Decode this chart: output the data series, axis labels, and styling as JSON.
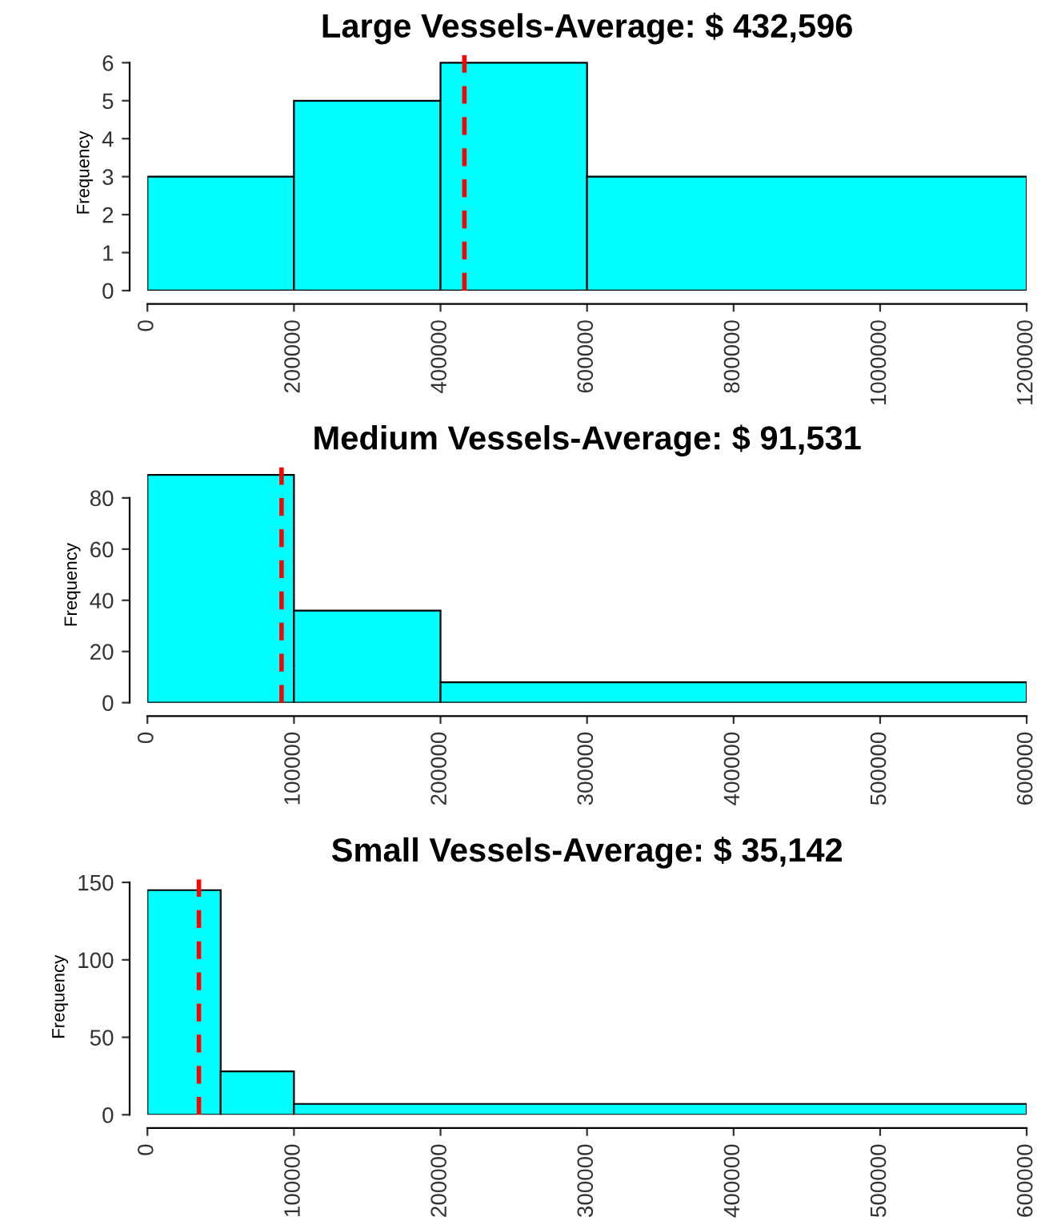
{
  "chart_data": [
    {
      "type": "histogram",
      "title": "Large Vessels-Average: $ 432,596",
      "ylabel": "Frequency",
      "bins": [
        0,
        200000,
        400000,
        600000,
        1200000
      ],
      "values": [
        3,
        5,
        6,
        3
      ],
      "color": "#00ffff",
      "xlim": [
        0,
        1200000
      ],
      "xticks": [
        0,
        200000,
        400000,
        600000,
        800000,
        1000000,
        1200000
      ],
      "ylim": [
        0,
        6.2
      ],
      "yticks": [
        0,
        1,
        2,
        3,
        4,
        5,
        6
      ],
      "ref_lines": [
        {
          "axis": "x",
          "value": 432596,
          "color": "#ff0000",
          "line_style": "dashed"
        }
      ],
      "grid": false,
      "legend": false
    },
    {
      "type": "histogram",
      "title": "Medium Vessels-Average: $ 91,531",
      "ylabel": "Frequency",
      "bins": [
        0,
        100000,
        200000,
        600000
      ],
      "values": [
        89,
        36,
        8
      ],
      "color": "#00ffff",
      "xlim": [
        0,
        600000
      ],
      "xticks": [
        0,
        100000,
        200000,
        300000,
        400000,
        500000,
        600000
      ],
      "ylim": [
        0,
        92
      ],
      "yticks": [
        0,
        20,
        40,
        60,
        80
      ],
      "ref_lines": [
        {
          "axis": "x",
          "value": 91531,
          "color": "#ff0000",
          "line_style": "dashed"
        }
      ],
      "grid": false,
      "legend": false
    },
    {
      "type": "histogram",
      "title": "Small Vessels-Average: $ 35,142",
      "ylabel": "Frequency",
      "bins": [
        0,
        50000,
        100000,
        600000
      ],
      "values": [
        145,
        28,
        7
      ],
      "color": "#00ffff",
      "xlim": [
        0,
        600000
      ],
      "xticks": [
        0,
        100000,
        200000,
        300000,
        400000,
        500000,
        600000
      ],
      "ylim": [
        0,
        152
      ],
      "yticks": [
        0,
        50,
        100,
        150
      ],
      "ref_lines": [
        {
          "axis": "x",
          "value": 35142,
          "color": "#ff0000",
          "line_style": "dashed"
        }
      ],
      "grid": false,
      "legend": false
    }
  ]
}
